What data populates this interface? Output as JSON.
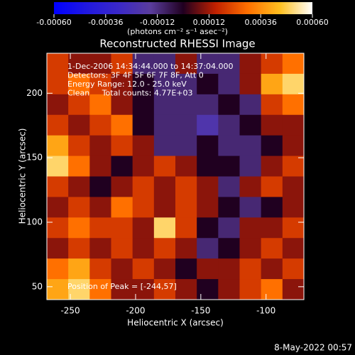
{
  "chart_data": {
    "type": "heatmap",
    "title": "Reconstructed RHESSI Image",
    "x_label": "Heliocentric X (arcsec)",
    "y_label": "Heliocentric Y (arcsec)",
    "annotations": [
      "1-Dec-2006 14:34:44.000 to 14:37:04.000",
      "Detectors: 3F 4F 5F 6F 7F 8F, Att 0",
      "Energy Range: 12.0 - 25.0 keV",
      "Clean     Total counts: 4.77E+03"
    ],
    "peak_label": "Position of Peak = [-244,57]",
    "timestamp": "8-May-2022 00:57",
    "xlim": [
      -268,
      -71
    ],
    "ylim": [
      40,
      231
    ],
    "xticks": [
      -250,
      -200,
      -150,
      -100
    ],
    "yticks": [
      50,
      100,
      150,
      200
    ],
    "colorbar": {
      "unit_label": "(photons cm⁻² s⁻¹ asec⁻²)",
      "clim": [
        -0.0006,
        0.0006
      ],
      "ticks": [
        {
          "value": -0.0006,
          "label": "-0.00060"
        },
        {
          "value": -0.00036,
          "label": "-0.00036"
        },
        {
          "value": -0.00012,
          "label": "-0.00012"
        },
        {
          "value": 0.00012,
          "label": "0.00012"
        },
        {
          "value": 0.00036,
          "label": "0.00036"
        },
        {
          "value": 0.0006,
          "label": "0.00060"
        }
      ],
      "colors": [
        "#0000ff",
        "#2018e0",
        "#3a28c8",
        "#5a3c9c",
        "#200020",
        "#c02000",
        "#ff7000",
        "#ffc020",
        "#ffffff"
      ]
    },
    "values": [
      [
        0.0002,
        0.0001,
        0.0001,
        0.0002,
        -0.0001,
        -0.0001,
        0.0001,
        -0.0001,
        -0.0001,
        0.0001,
        0.0002,
        0.0003
      ],
      [
        0.0002,
        0.0003,
        0.0002,
        0.0001,
        0,
        -0.0001,
        -0.0001,
        0,
        -0.0001,
        0.0001,
        0.0004,
        0.0005
      ],
      [
        0.0001,
        0.0002,
        0.0003,
        0.0001,
        0,
        -0.0001,
        -0.0001,
        -0.0001,
        0,
        -0.0001,
        0.0002,
        0.0003
      ],
      [
        0.0002,
        0.0001,
        0.0002,
        0.0003,
        0,
        -0.0001,
        -0.0001,
        -0.0002,
        -0.0001,
        0,
        0.0001,
        0.0001
      ],
      [
        0.0004,
        0.0002,
        0.0001,
        0.0002,
        0.0001,
        -0.0001,
        -0.0001,
        0,
        -0.0001,
        -0.0001,
        0,
        0.0001
      ],
      [
        0.0005,
        0.0003,
        0.0001,
        0,
        0.0001,
        0.0002,
        0.0001,
        0,
        0,
        -0.0001,
        0.0001,
        0.0002
      ],
      [
        0.0002,
        0.0001,
        0,
        0.0001,
        0.0002,
        0.0001,
        0.0002,
        0.0001,
        -0.0001,
        0.0001,
        0.0002,
        0.0001
      ],
      [
        0.0001,
        0.0002,
        0.0001,
        0.0003,
        0.0002,
        0.0001,
        0.0002,
        0.0001,
        0,
        -0.0001,
        0,
        0.0001
      ],
      [
        0.0002,
        0.0003,
        0.0002,
        0.0002,
        0.0001,
        0.0005,
        0.0002,
        0,
        -0.0001,
        0.0001,
        0.0001,
        0.0002
      ],
      [
        0.0001,
        0.0002,
        0.0001,
        0.0002,
        0.0001,
        0.0002,
        0.0001,
        -0.0001,
        0,
        0.0001,
        0.0002,
        0.0001
      ],
      [
        0.0003,
        0.0004,
        0.0002,
        0.0001,
        0.0002,
        0.0001,
        0,
        0.0001,
        0.0001,
        0.0002,
        0.0001,
        0.0002
      ],
      [
        0.0004,
        0.0005,
        0.0003,
        0.0001,
        0.0001,
        0.0002,
        0.0001,
        0,
        0.0001,
        0.0002,
        0.0003,
        0.0001
      ]
    ]
  }
}
